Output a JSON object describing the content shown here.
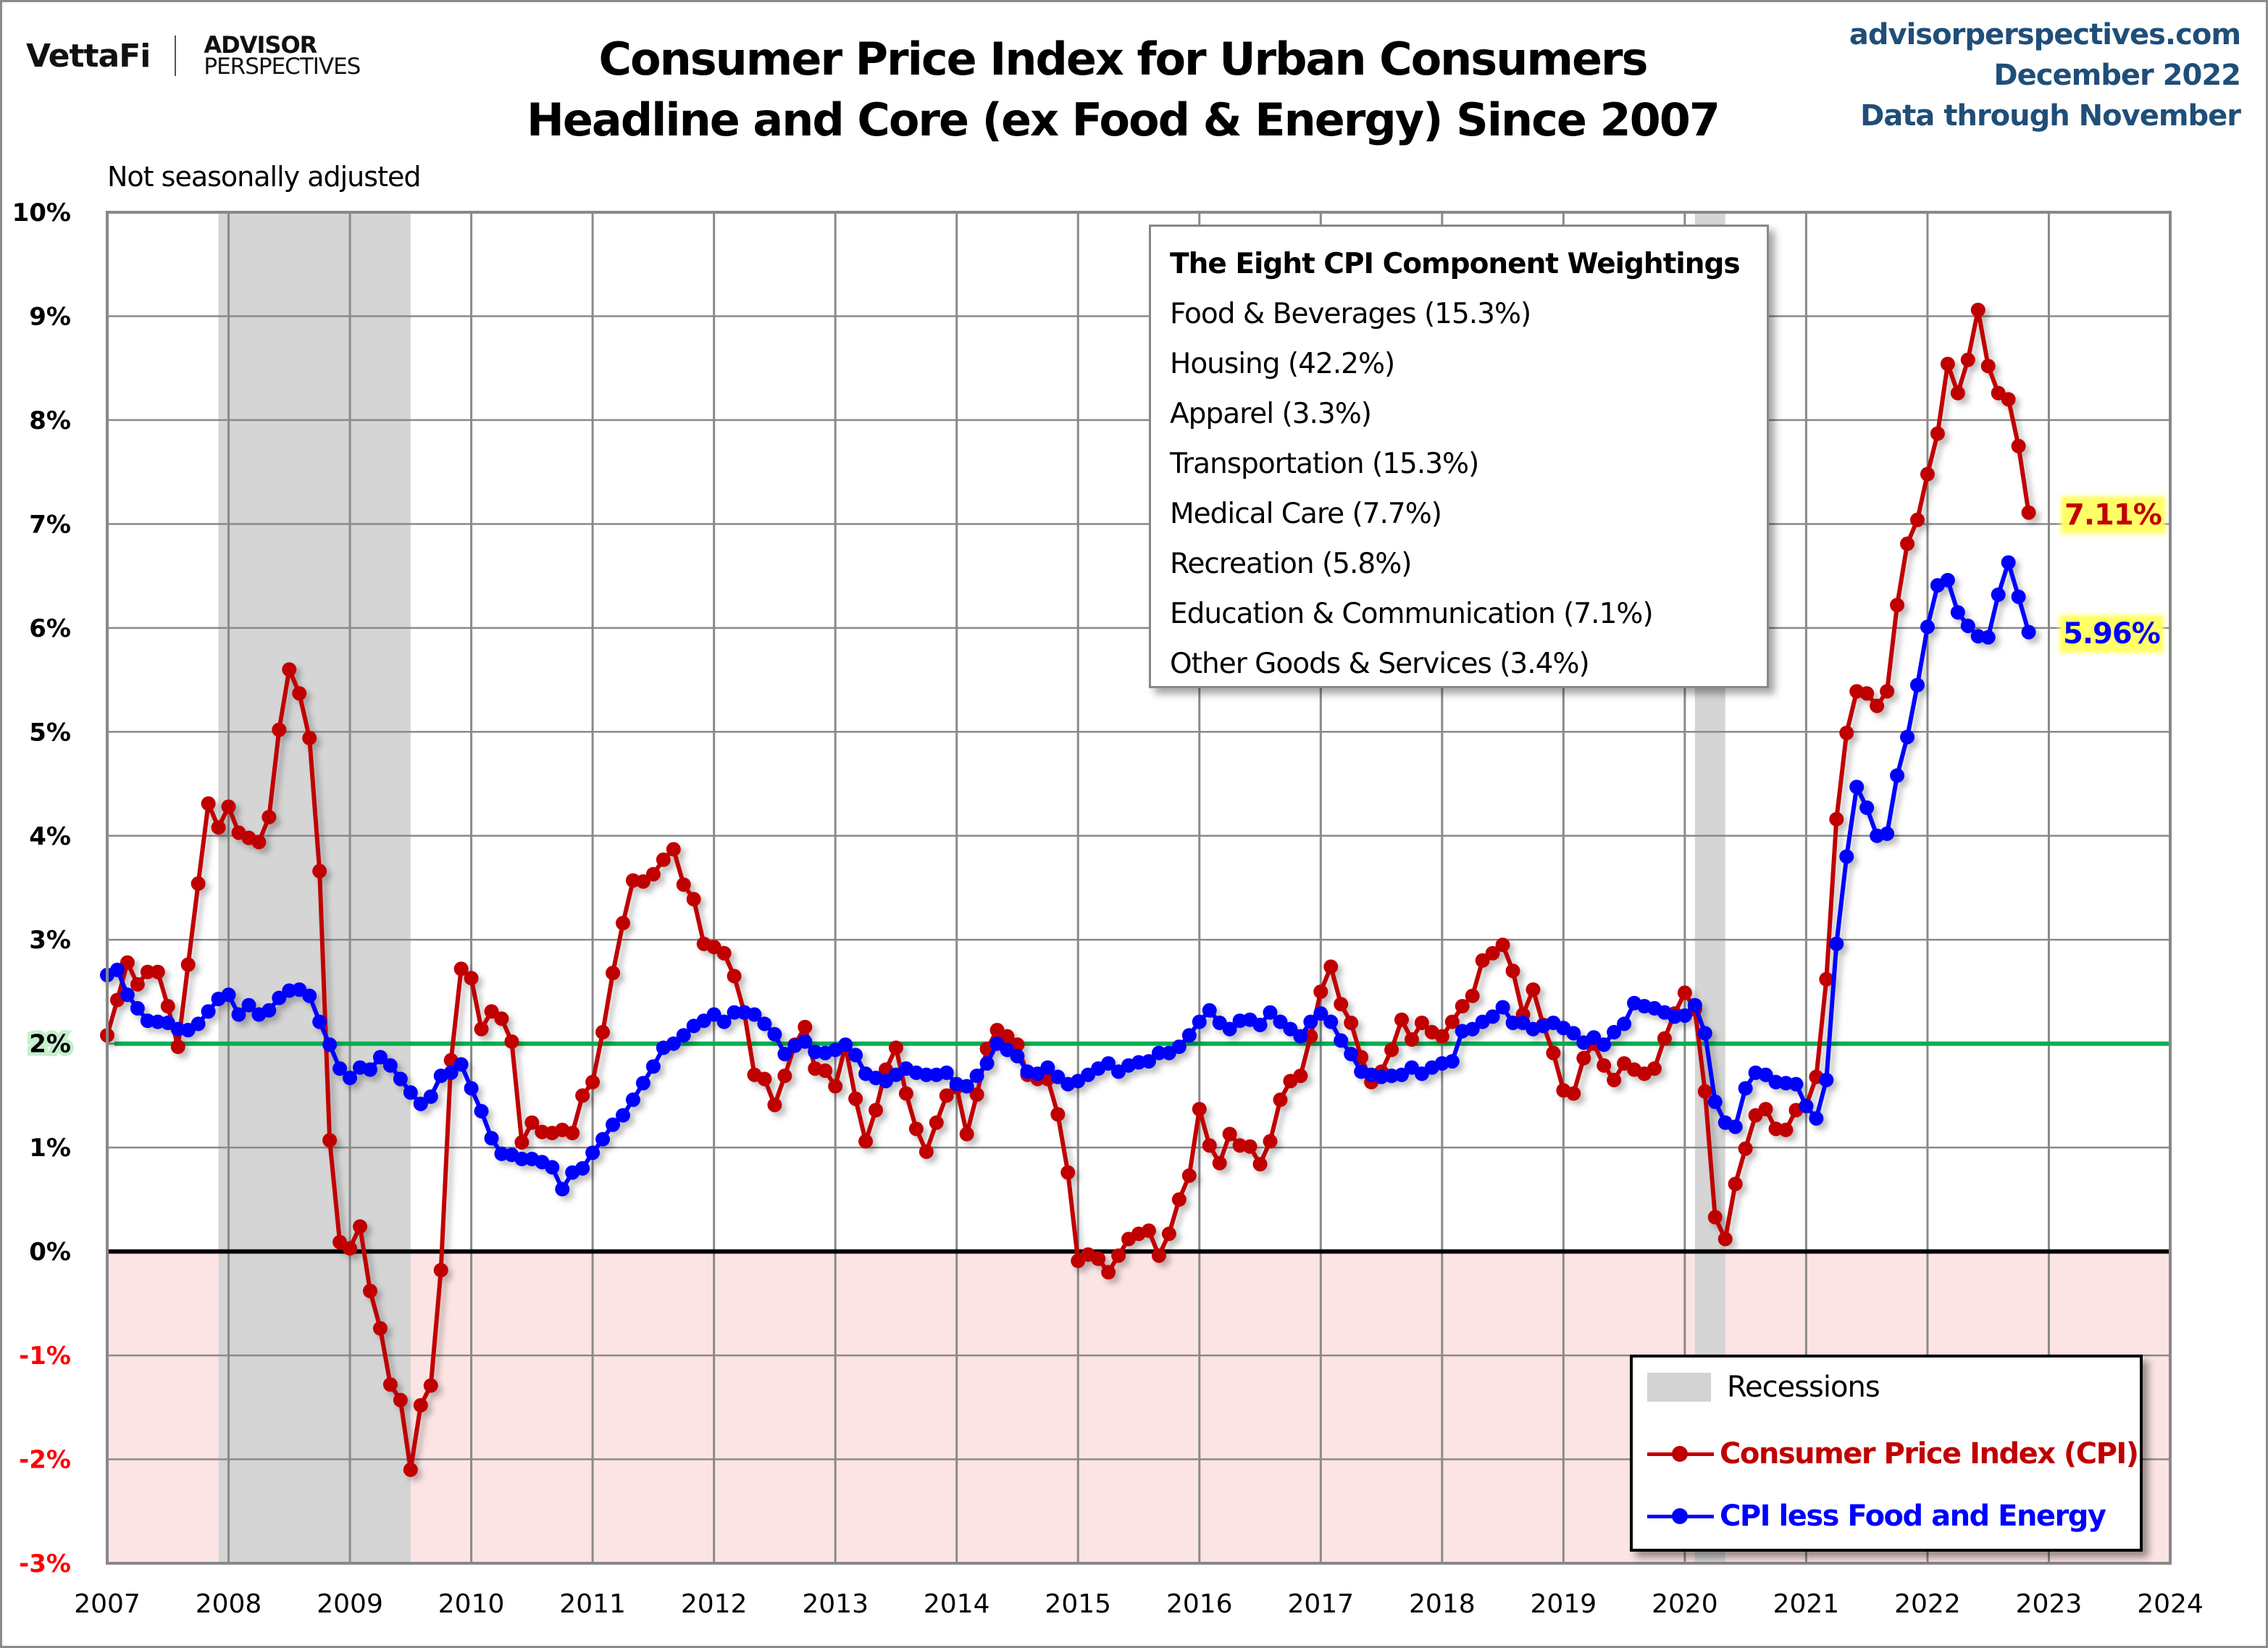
{
  "header": {
    "logo_primary": "VettaFi",
    "logo_secondary_top": "ADVISOR",
    "logo_secondary_bottom": "PERSPECTIVES",
    "title_line1": "Consumer Price Index for Urban Consumers",
    "title_line2": "Headline and Core (ex Food & Energy) Since 2007",
    "source_site": "advisorperspectives.com",
    "source_date": "December 2022",
    "source_coverage": "Data through November"
  },
  "note": "Not seasonally adjusted",
  "weightings_box": {
    "title": "The Eight CPI Component Weightings",
    "items": [
      "Food & Beverages (15.3%)",
      "Housing (42.2%)",
      "Apparel (3.3%)",
      "Transportation (15.3%)",
      "Medical Care (7.7%)",
      "Recreation (5.8%)",
      "Education & Communication (7.1%)",
      "Other Goods & Services (3.4%)"
    ]
  },
  "legend": {
    "recessions": "Recessions",
    "cpi": "Consumer Price Index (CPI)",
    "core": "CPI less Food and Energy"
  },
  "end_labels": {
    "cpi": "7.11%",
    "core": "5.96%"
  },
  "colors": {
    "cpi": "#c00000",
    "core": "#0000ff",
    "target_line": "#00b050",
    "recession": "#d3d3d3",
    "negative_zone": "#fde4e4",
    "negative_tick": "#ff0000",
    "source_text": "#1f4e79"
  },
  "chart_data": {
    "type": "line",
    "title": "Consumer Price Index for Urban Consumers — Headline and Core (ex Food & Energy) Since 2007",
    "xlabel": "",
    "ylabel": "",
    "x_start": "2007-01",
    "frequency": "monthly",
    "xlim": [
      2007,
      2024
    ],
    "ylim": [
      -3,
      10
    ],
    "grid": true,
    "legend_position": "bottom-right",
    "x_ticks": [
      "2007",
      "2008",
      "2009",
      "2010",
      "2011",
      "2012",
      "2013",
      "2014",
      "2015",
      "2016",
      "2017",
      "2018",
      "2019",
      "2020",
      "2021",
      "2022",
      "2023",
      "2024"
    ],
    "y_ticks": [
      "10%",
      "9%",
      "8%",
      "7%",
      "6%",
      "5%",
      "4%",
      "3%",
      "2%",
      "1%",
      "0%",
      "-1%",
      "-2%",
      "-3%"
    ],
    "reference_lines": [
      {
        "name": "Fed 2% target",
        "y": 2
      },
      {
        "name": "zero",
        "y": 0
      }
    ],
    "recessions": [
      {
        "start": "2007-12",
        "end": "2009-06"
      },
      {
        "start": "2020-02",
        "end": "2020-04"
      }
    ],
    "series": [
      {
        "name": "Consumer Price Index (CPI)",
        "last_label": "7.11%",
        "values": [
          2.08,
          2.42,
          2.78,
          2.57,
          2.69,
          2.69,
          2.36,
          1.97,
          2.76,
          3.54,
          4.31,
          4.08,
          4.28,
          4.03,
          3.98,
          3.94,
          4.18,
          5.02,
          5.6,
          5.37,
          4.94,
          3.66,
          1.07,
          0.09,
          0.03,
          0.24,
          -0.38,
          -0.74,
          -1.28,
          -1.43,
          -2.1,
          -1.48,
          -1.29,
          -0.18,
          1.84,
          2.72,
          2.63,
          2.14,
          2.31,
          2.24,
          2.02,
          1.05,
          1.24,
          1.15,
          1.14,
          1.17,
          1.14,
          1.5,
          1.63,
          2.11,
          2.68,
          3.16,
          3.57,
          3.56,
          3.63,
          3.77,
          3.87,
          3.53,
          3.39,
          2.96,
          2.93,
          2.87,
          2.65,
          2.3,
          1.7,
          1.66,
          1.41,
          1.69,
          1.99,
          2.16,
          1.76,
          1.74,
          1.59,
          1.98,
          1.47,
          1.06,
          1.36,
          1.75,
          1.96,
          1.52,
          1.18,
          0.96,
          1.24,
          1.5,
          1.58,
          1.13,
          1.51,
          1.95,
          2.13,
          2.07,
          1.99,
          1.7,
          1.66,
          1.66,
          1.32,
          0.76,
          -0.09,
          -0.03,
          -0.07,
          -0.2,
          -0.04,
          0.12,
          0.17,
          0.2,
          -0.04,
          0.17,
          0.5,
          0.73,
          1.37,
          1.02,
          0.85,
          1.13,
          1.02,
          1.01,
          0.84,
          1.06,
          1.46,
          1.64,
          1.69,
          2.07,
          2.5,
          2.74,
          2.38,
          2.2,
          1.87,
          1.63,
          1.73,
          1.94,
          2.23,
          2.04,
          2.2,
          2.11,
          2.07,
          2.21,
          2.36,
          2.46,
          2.8,
          2.87,
          2.95,
          2.7,
          2.28,
          2.52,
          2.18,
          1.91,
          1.55,
          1.52,
          1.86,
          2.0,
          1.79,
          1.65,
          1.81,
          1.75,
          1.71,
          1.76,
          2.05,
          2.29,
          2.49,
          2.33,
          1.54,
          0.33,
          0.12,
          0.65,
          0.99,
          1.31,
          1.37,
          1.18,
          1.17,
          1.36,
          1.4,
          1.68,
          2.62,
          4.16,
          4.99,
          5.39,
          5.37,
          5.25,
          5.39,
          6.22,
          6.81,
          7.04,
          7.48,
          7.87,
          8.54,
          8.26,
          8.58,
          9.06,
          8.52,
          8.26,
          8.2,
          7.75,
          7.11
        ]
      },
      {
        "name": "CPI less Food and Energy",
        "last_label": "5.96%",
        "values": [
          2.66,
          2.71,
          2.47,
          2.34,
          2.22,
          2.21,
          2.2,
          2.14,
          2.13,
          2.19,
          2.31,
          2.43,
          2.47,
          2.28,
          2.37,
          2.28,
          2.32,
          2.44,
          2.51,
          2.52,
          2.46,
          2.21,
          1.99,
          1.76,
          1.67,
          1.77,
          1.75,
          1.87,
          1.79,
          1.66,
          1.53,
          1.42,
          1.49,
          1.69,
          1.72,
          1.8,
          1.57,
          1.35,
          1.09,
          0.94,
          0.93,
          0.89,
          0.89,
          0.86,
          0.81,
          0.6,
          0.76,
          0.8,
          0.95,
          1.08,
          1.22,
          1.31,
          1.46,
          1.62,
          1.78,
          1.96,
          2.0,
          2.08,
          2.17,
          2.22,
          2.28,
          2.21,
          2.3,
          2.3,
          2.28,
          2.19,
          2.09,
          1.9,
          1.98,
          2.02,
          1.92,
          1.91,
          1.94,
          1.99,
          1.89,
          1.71,
          1.67,
          1.64,
          1.7,
          1.76,
          1.72,
          1.7,
          1.7,
          1.72,
          1.61,
          1.59,
          1.69,
          1.81,
          2.0,
          1.94,
          1.88,
          1.73,
          1.71,
          1.77,
          1.68,
          1.61,
          1.64,
          1.7,
          1.76,
          1.81,
          1.73,
          1.79,
          1.82,
          1.83,
          1.91,
          1.91,
          1.97,
          2.08,
          2.21,
          2.32,
          2.2,
          2.14,
          2.22,
          2.23,
          2.18,
          2.3,
          2.21,
          2.14,
          2.07,
          2.21,
          2.29,
          2.21,
          2.03,
          1.9,
          1.73,
          1.7,
          1.68,
          1.69,
          1.7,
          1.77,
          1.71,
          1.77,
          1.81,
          1.83,
          2.12,
          2.14,
          2.21,
          2.26,
          2.35,
          2.2,
          2.2,
          2.14,
          2.17,
          2.2,
          2.15,
          2.1,
          2.01,
          2.06,
          1.99,
          2.11,
          2.19,
          2.39,
          2.36,
          2.34,
          2.3,
          2.26,
          2.27,
          2.37,
          2.1,
          1.44,
          1.24,
          1.2,
          1.57,
          1.72,
          1.7,
          1.63,
          1.62,
          1.61,
          1.4,
          1.28,
          1.65,
          2.96,
          3.8,
          4.47,
          4.27,
          4.0,
          4.02,
          4.58,
          4.95,
          5.45,
          6.01,
          6.41,
          6.46,
          6.15,
          6.02,
          5.92,
          5.91,
          6.32,
          6.63,
          6.3,
          5.96
        ]
      }
    ]
  }
}
